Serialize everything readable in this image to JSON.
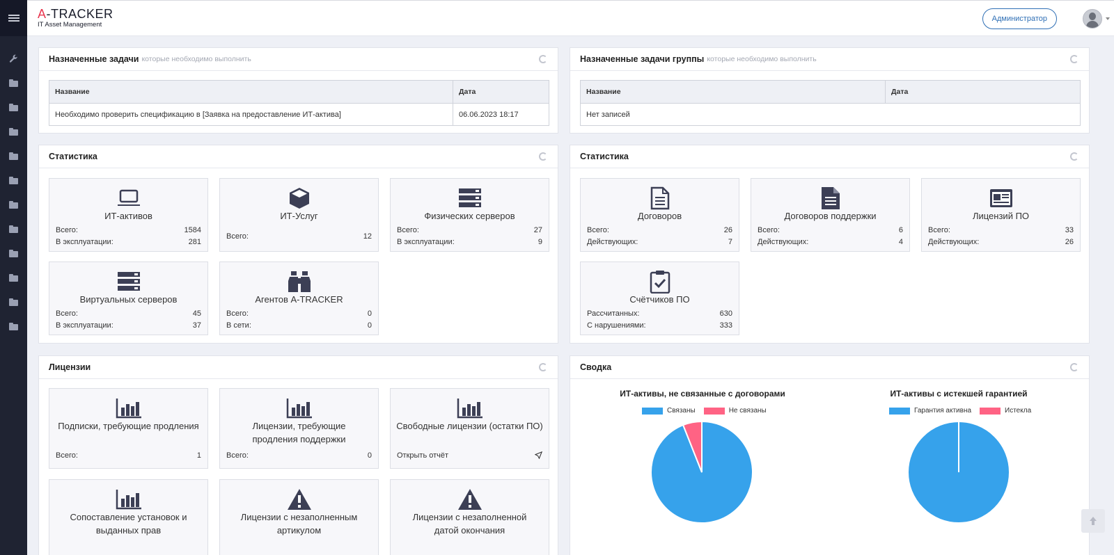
{
  "app": {
    "logo_prefix": "A",
    "logo_rest": "-TRACKER",
    "logo_sub": "IT Asset Management"
  },
  "header": {
    "user_button": "Администратор"
  },
  "sidebar": {
    "items": [
      "wrench-icon",
      "folder-icon",
      "folder-icon",
      "folder-icon",
      "folder-icon",
      "folder-icon",
      "folder-icon",
      "folder-icon",
      "folder-icon",
      "folder-icon",
      "folder-icon",
      "folder-icon"
    ]
  },
  "tasks": {
    "title": "Назначенные задачи",
    "subtitle": "которые необходимо выполнить",
    "col_name": "Название",
    "col_date": "Дата",
    "rows": [
      {
        "name": "Необходимо проверить спецификацию в [Заявка на предоставление ИТ-актива]",
        "date": "06.06.2023 18:17"
      }
    ]
  },
  "group_tasks": {
    "title": "Назначенные задачи группы",
    "subtitle": "которые необходимо выполнить",
    "col_name": "Название",
    "col_date": "Дата",
    "empty": "Нет записей"
  },
  "stats_left": {
    "title": "Статистика",
    "cards": [
      {
        "icon": "laptop-icon",
        "title": "ИТ-активов",
        "rows": [
          {
            "label": "Всего:",
            "value": "1584"
          },
          {
            "label": "В эксплуатации:",
            "value": "281"
          }
        ]
      },
      {
        "icon": "cube-icon",
        "title": "ИТ-Услуг",
        "rows": [
          {
            "label": "Всего:",
            "value": "12"
          }
        ]
      },
      {
        "icon": "server-icon",
        "title": "Физических серверов",
        "rows": [
          {
            "label": "Всего:",
            "value": "27"
          },
          {
            "label": "В эксплуатации:",
            "value": "9"
          }
        ]
      },
      {
        "icon": "server-icon",
        "title": "Виртуальных серверов",
        "rows": [
          {
            "label": "Всего:",
            "value": "45"
          },
          {
            "label": "В эксплуатации:",
            "value": "37"
          }
        ]
      },
      {
        "icon": "binoculars-icon",
        "title": "Агентов A-TRACKER",
        "rows": [
          {
            "label": "Всего:",
            "value": "0"
          },
          {
            "label": "В сети:",
            "value": "0"
          }
        ]
      }
    ]
  },
  "stats_right": {
    "title": "Статистика",
    "cards": [
      {
        "icon": "document-icon",
        "title": "Договоров",
        "rows": [
          {
            "label": "Всего:",
            "value": "26"
          },
          {
            "label": "Действующих:",
            "value": "7"
          }
        ]
      },
      {
        "icon": "document-filled-icon",
        "title": "Договоров поддержки",
        "rows": [
          {
            "label": "Всего:",
            "value": "6"
          },
          {
            "label": "Действующих:",
            "value": "4"
          }
        ]
      },
      {
        "icon": "license-icon",
        "title": "Лицензий ПО",
        "rows": [
          {
            "label": "Всего:",
            "value": "33"
          },
          {
            "label": "Действующих:",
            "value": "26"
          }
        ]
      },
      {
        "icon": "clipboard-check-icon",
        "title": "Счётчиков ПО",
        "rows": [
          {
            "label": "Рассчитанных:",
            "value": "630"
          },
          {
            "label": "С нарушениями:",
            "value": "333"
          }
        ]
      }
    ]
  },
  "licenses": {
    "title": "Лицензии",
    "cards": [
      {
        "icon": "bar-chart-icon",
        "title": "Подписки, требующие продления",
        "row": {
          "label": "Всего:",
          "value": "1"
        }
      },
      {
        "icon": "bar-chart-icon",
        "title": "Лицензии, требующие продления поддержки",
        "row": {
          "label": "Всего:",
          "value": "0"
        }
      },
      {
        "icon": "bar-chart-icon",
        "title": "Свободные лицензии (остатки ПО)",
        "row": {
          "label": "Открыть отчёт",
          "value": ""
        }
      },
      {
        "icon": "bar-chart-icon",
        "title": "Сопоставление установок и выданных прав",
        "row": {
          "label": "",
          "value": ""
        }
      },
      {
        "icon": "warning-icon",
        "title": "Лицензии с незаполненным артикулом",
        "row": {
          "label": "",
          "value": ""
        }
      },
      {
        "icon": "warning-icon",
        "title": "Лицензии с незаполненной датой окончания",
        "row": {
          "label": "",
          "value": ""
        }
      }
    ]
  },
  "summary": {
    "title": "Сводка",
    "charts": [
      {
        "title": "ИТ-активы, не связанные с договорами",
        "legend": [
          "Связаны",
          "Не связаны"
        ],
        "colors": [
          "#36a2eb",
          "#ff6384"
        ],
        "values": [
          94,
          6
        ]
      },
      {
        "title": "ИТ-активы с истекшей гарантией",
        "legend": [
          "Гарантия активна",
          "Истекла"
        ],
        "colors": [
          "#36a2eb",
          "#ff6384"
        ],
        "values": [
          100,
          0
        ]
      }
    ]
  },
  "chart_data": [
    {
      "type": "pie",
      "title": "ИТ-активы, не связанные с договорами",
      "categories": [
        "Связаны",
        "Не связаны"
      ],
      "values": [
        94,
        6
      ],
      "legend": "top"
    },
    {
      "type": "pie",
      "title": "ИТ-активы с истекшей гарантией",
      "categories": [
        "Гарантия активна",
        "Истекла"
      ],
      "values": [
        100,
        0
      ],
      "legend": "top"
    }
  ]
}
